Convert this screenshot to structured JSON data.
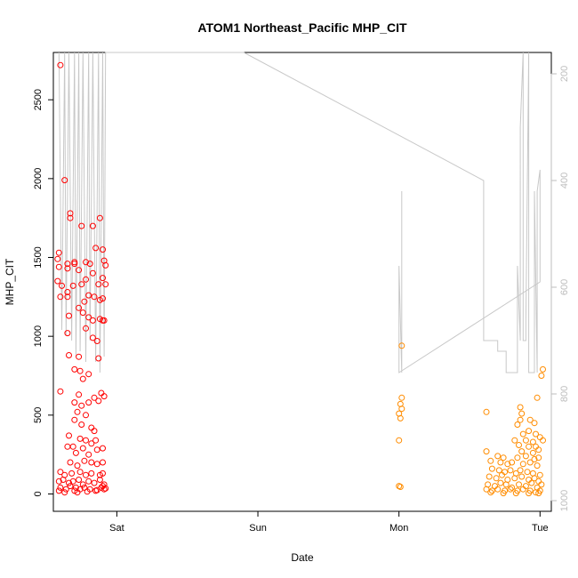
{
  "chart_data": {
    "type": "scatter",
    "title": "ATOM1 Northeast_Pacific MHP_CIT",
    "xlabel": "Date",
    "ylabel": "MHP_CIT",
    "xlim": [
      -0.45,
      3.08
    ],
    "ylim": [
      -110,
      2800
    ],
    "x_ticks": [
      {
        "v": 0,
        "label": "Sat"
      },
      {
        "v": 1,
        "label": "Sun"
      },
      {
        "v": 2,
        "label": "Mon"
      },
      {
        "v": 3,
        "label": "Tue"
      }
    ],
    "y_ticks": [
      0,
      500,
      1000,
      1500,
      2000,
      2500
    ],
    "y2_ticks": [
      200,
      400,
      600,
      800,
      1000
    ],
    "y2lim": [
      1020,
      160
    ],
    "colors": {
      "series_red": "#ff0000",
      "series_orange": "#ff8c00",
      "line": "#c8c8c8",
      "axis": "#000000",
      "right_axis": "#bdbdbd"
    },
    "series": [
      {
        "color": "#ff0000",
        "points": [
          [
            -0.4,
            2720
          ],
          [
            -0.37,
            1990
          ],
          [
            -0.33,
            1780
          ],
          [
            -0.33,
            1750
          ],
          [
            -0.25,
            1700
          ],
          [
            -0.17,
            1700
          ],
          [
            -0.12,
            1750
          ],
          [
            -0.41,
            1530
          ],
          [
            -0.42,
            1490
          ],
          [
            -0.41,
            1440
          ],
          [
            -0.35,
            1460
          ],
          [
            -0.35,
            1430
          ],
          [
            -0.3,
            1470
          ],
          [
            -0.3,
            1460
          ],
          [
            -0.27,
            1420
          ],
          [
            -0.22,
            1470
          ],
          [
            -0.19,
            1460
          ],
          [
            -0.15,
            1560
          ],
          [
            -0.1,
            1550
          ],
          [
            -0.09,
            1480
          ],
          [
            -0.08,
            1450
          ],
          [
            -0.42,
            1350
          ],
          [
            -0.39,
            1320
          ],
          [
            -0.35,
            1280
          ],
          [
            -0.31,
            1320
          ],
          [
            -0.25,
            1330
          ],
          [
            -0.22,
            1360
          ],
          [
            -0.17,
            1400
          ],
          [
            -0.13,
            1330
          ],
          [
            -0.1,
            1370
          ],
          [
            -0.08,
            1330
          ],
          [
            -0.4,
            1250
          ],
          [
            -0.35,
            1250
          ],
          [
            -0.27,
            1180
          ],
          [
            -0.23,
            1220
          ],
          [
            -0.2,
            1260
          ],
          [
            -0.16,
            1250
          ],
          [
            -0.12,
            1230
          ],
          [
            -0.1,
            1240
          ],
          [
            -0.34,
            1130
          ],
          [
            -0.24,
            1150
          ],
          [
            -0.2,
            1120
          ],
          [
            -0.17,
            1100
          ],
          [
            -0.12,
            1110
          ],
          [
            -0.1,
            1100
          ],
          [
            -0.09,
            1100
          ],
          [
            -0.35,
            1020
          ],
          [
            -0.22,
            1050
          ],
          [
            -0.17,
            990
          ],
          [
            -0.14,
            970
          ],
          [
            -0.34,
            880
          ],
          [
            -0.27,
            870
          ],
          [
            -0.13,
            860
          ],
          [
            -0.3,
            790
          ],
          [
            -0.26,
            780
          ],
          [
            -0.2,
            760
          ],
          [
            -0.24,
            730
          ],
          [
            -0.11,
            640
          ],
          [
            -0.09,
            620
          ],
          [
            -0.4,
            650
          ],
          [
            -0.27,
            630
          ],
          [
            -0.16,
            610
          ],
          [
            -0.13,
            590
          ],
          [
            -0.3,
            580
          ],
          [
            -0.2,
            580
          ],
          [
            -0.25,
            560
          ],
          [
            -0.28,
            520
          ],
          [
            -0.22,
            500
          ],
          [
            -0.3,
            470
          ],
          [
            -0.25,
            440
          ],
          [
            -0.18,
            420
          ],
          [
            -0.16,
            400
          ],
          [
            -0.34,
            370
          ],
          [
            -0.26,
            350
          ],
          [
            -0.22,
            340
          ],
          [
            -0.18,
            320
          ],
          [
            -0.15,
            340
          ],
          [
            -0.35,
            300
          ],
          [
            -0.31,
            300
          ],
          [
            -0.24,
            290
          ],
          [
            -0.1,
            290
          ],
          [
            -0.29,
            260
          ],
          [
            -0.2,
            250
          ],
          [
            -0.14,
            280
          ],
          [
            -0.33,
            200
          ],
          [
            -0.28,
            180
          ],
          [
            -0.23,
            210
          ],
          [
            -0.18,
            200
          ],
          [
            -0.14,
            190
          ],
          [
            -0.1,
            200
          ],
          [
            -0.4,
            140
          ],
          [
            -0.37,
            120
          ],
          [
            -0.32,
            130
          ],
          [
            -0.26,
            140
          ],
          [
            -0.22,
            120
          ],
          [
            -0.18,
            130
          ],
          [
            -0.12,
            120
          ],
          [
            -0.1,
            130
          ],
          [
            -0.41,
            80
          ],
          [
            -0.38,
            90
          ],
          [
            -0.34,
            70
          ],
          [
            -0.31,
            80
          ],
          [
            -0.27,
            90
          ],
          [
            -0.24,
            60
          ],
          [
            -0.2,
            80
          ],
          [
            -0.16,
            70
          ],
          [
            -0.12,
            90
          ],
          [
            -0.09,
            60
          ],
          [
            -0.4,
            40
          ],
          [
            -0.36,
            30
          ],
          [
            -0.33,
            50
          ],
          [
            -0.29,
            40
          ],
          [
            -0.26,
            30
          ],
          [
            -0.23,
            40
          ],
          [
            -0.19,
            30
          ],
          [
            -0.15,
            20
          ],
          [
            -0.11,
            40
          ],
          [
            -0.09,
            30
          ],
          [
            -0.41,
            20
          ],
          [
            -0.37,
            10
          ],
          [
            -0.3,
            20
          ],
          [
            -0.28,
            10
          ],
          [
            -0.21,
            15
          ],
          [
            -0.14,
            25
          ],
          [
            -0.1,
            50
          ],
          [
            -0.08,
            35
          ]
        ]
      },
      {
        "color": "#ff8c00",
        "points": [
          [
            2.02,
            940
          ],
          [
            2.02,
            610
          ],
          [
            2.01,
            570
          ],
          [
            2.02,
            540
          ],
          [
            2.0,
            510
          ],
          [
            2.01,
            480
          ],
          [
            2.0,
            340
          ],
          [
            2.0,
            50
          ],
          [
            2.01,
            45
          ],
          [
            2.62,
            520
          ],
          [
            2.86,
            550
          ],
          [
            2.87,
            510
          ],
          [
            2.98,
            610
          ],
          [
            3.02,
            790
          ],
          [
            3.01,
            750
          ],
          [
            2.86,
            470
          ],
          [
            2.93,
            470
          ],
          [
            2.96,
            450
          ],
          [
            2.84,
            440
          ],
          [
            2.92,
            400
          ],
          [
            2.88,
            380
          ],
          [
            2.97,
            380
          ],
          [
            2.82,
            340
          ],
          [
            2.9,
            340
          ],
          [
            2.95,
            330
          ],
          [
            3.0,
            360
          ],
          [
            3.02,
            340
          ],
          [
            2.85,
            310
          ],
          [
            2.92,
            300
          ],
          [
            2.97,
            300
          ],
          [
            2.87,
            270
          ],
          [
            2.95,
            260
          ],
          [
            2.99,
            280
          ],
          [
            2.62,
            270
          ],
          [
            2.7,
            240
          ],
          [
            2.74,
            230
          ],
          [
            2.84,
            230
          ],
          [
            2.9,
            240
          ],
          [
            2.96,
            220
          ],
          [
            2.99,
            230
          ],
          [
            2.65,
            210
          ],
          [
            2.72,
            200
          ],
          [
            2.77,
            190
          ],
          [
            2.8,
            200
          ],
          [
            2.88,
            190
          ],
          [
            2.93,
            200
          ],
          [
            2.98,
            180
          ],
          [
            2.66,
            160
          ],
          [
            2.71,
            150
          ],
          [
            2.75,
            140
          ],
          [
            2.79,
            150
          ],
          [
            2.83,
            130
          ],
          [
            2.86,
            150
          ],
          [
            2.91,
            140
          ],
          [
            2.95,
            130
          ],
          [
            3.0,
            120
          ],
          [
            2.64,
            110
          ],
          [
            2.69,
            100
          ],
          [
            2.73,
            120
          ],
          [
            2.77,
            90
          ],
          [
            2.82,
            100
          ],
          [
            2.87,
            110
          ],
          [
            2.92,
            90
          ],
          [
            2.96,
            100
          ],
          [
            2.99,
            80
          ],
          [
            2.63,
            60
          ],
          [
            2.68,
            50
          ],
          [
            2.72,
            70
          ],
          [
            2.76,
            60
          ],
          [
            2.8,
            40
          ],
          [
            2.85,
            60
          ],
          [
            2.9,
            50
          ],
          [
            2.94,
            70
          ],
          [
            2.98,
            40
          ],
          [
            3.01,
            60
          ],
          [
            2.62,
            30
          ],
          [
            2.66,
            20
          ],
          [
            2.7,
            30
          ],
          [
            2.75,
            20
          ],
          [
            2.79,
            30
          ],
          [
            2.84,
            20
          ],
          [
            2.88,
            30
          ],
          [
            2.93,
            20
          ],
          [
            2.97,
            10
          ],
          [
            3.0,
            20
          ],
          [
            2.65,
            10
          ],
          [
            2.74,
            5
          ],
          [
            2.83,
            5
          ],
          [
            2.92,
            5
          ],
          [
            2.99,
            5
          ]
        ]
      }
    ],
    "line_y2": {
      "x": [
        -0.41,
        -0.39,
        -0.37,
        -0.36,
        -0.34,
        -0.32,
        -0.3,
        -0.29,
        -0.27,
        -0.26,
        -0.24,
        -0.22,
        -0.2,
        -0.19,
        -0.17,
        -0.15,
        -0.13,
        -0.12,
        -0.1,
        -0.09,
        -0.08,
        0.9,
        2.6,
        2.6,
        2.63,
        2.7,
        2.7,
        2.76,
        2.76,
        2.84,
        2.84,
        2.86,
        2.86,
        2.88,
        2.88,
        2.9,
        2.9,
        2.92,
        2.92,
        2.96,
        2.96,
        2.98,
        2.98,
        3.0,
        3.0,
        2.0,
        2.0,
        2.02,
        2.02
      ],
      "y": [
        160,
        680,
        160,
        690,
        160,
        700,
        160,
        730,
        160,
        720,
        160,
        740,
        160,
        700,
        160,
        740,
        160,
        760,
        160,
        730,
        160,
        160,
        400,
        700,
        700,
        700,
        720,
        720,
        760,
        760,
        560,
        700,
        300,
        160,
        700,
        700,
        660,
        160,
        760,
        760,
        420,
        760,
        420,
        380,
        590,
        760,
        560,
        760,
        420
      ]
    }
  }
}
